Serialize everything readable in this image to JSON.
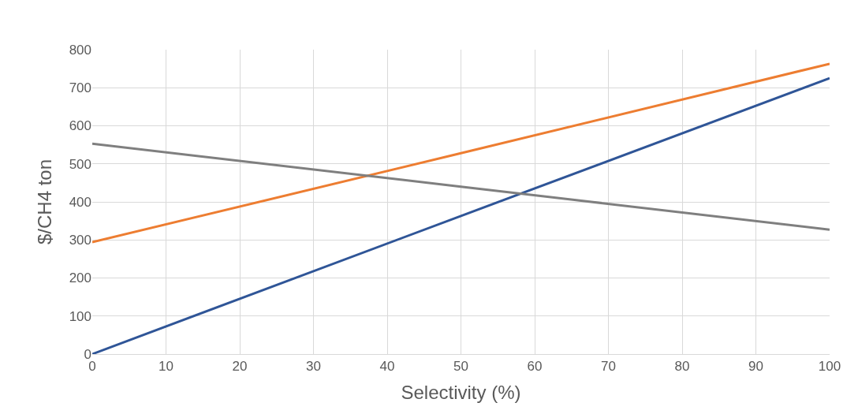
{
  "chart_data": {
    "type": "line",
    "xlabel": "Selectivity (%)",
    "ylabel": "$/CH4 ton",
    "xlim": [
      0,
      100
    ],
    "xticks": [
      0,
      10,
      20,
      30,
      40,
      50,
      60,
      70,
      80,
      90,
      100
    ],
    "ylim": [
      0,
      800
    ],
    "yticks": [
      0,
      100,
      200,
      300,
      400,
      500,
      600,
      700,
      800
    ],
    "grid": true,
    "marker": "none",
    "line_style": "solid",
    "series": [
      {
        "color": "#2f5597",
        "x": [
          0,
          50,
          100
        ],
        "values": [
          0,
          363,
          725
        ]
      },
      {
        "color": "#ed7d31",
        "x": [
          0,
          50,
          100
        ],
        "values": [
          294,
          528,
          763
        ]
      },
      {
        "color": "#7f7f7f",
        "x": [
          0,
          50,
          100
        ],
        "values": [
          553,
          440,
          327
        ]
      }
    ]
  }
}
